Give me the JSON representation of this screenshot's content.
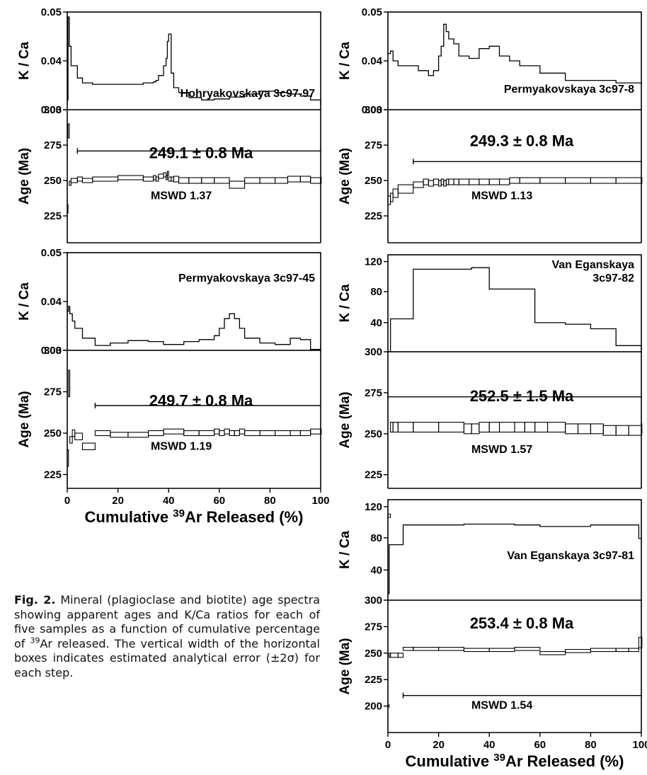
{
  "figure": {
    "caption_label": "Fig. 2.",
    "caption_part1": "Mineral (plagioclase and biotite) age spectra showing apparent ages and K/Ca ratios for each of five samples as a function of cumulative percentage of ",
    "caption_sup": "39",
    "caption_part2": "Ar released. The vertical width of the horizontal boxes indicates estimated analytical error (±2σ) for each step.",
    "xlabel_prefix": "Cumulative ",
    "xlabel_sup": "39",
    "xlabel_suffix": "Ar Released (%)",
    "x_ticks": [
      "0",
      "20",
      "40",
      "60",
      "80",
      "100"
    ]
  },
  "chart_data": [
    {
      "type": "line",
      "sample": "Hohryakovskaya 3c97-97",
      "xlabel": "Cumulative 39Ar Released (%)",
      "kca": {
        "ylabel": "K / Ca",
        "ylim": [
          0.025,
          0.05
        ],
        "ticks": [
          "0.05",
          "0.04",
          "0.03"
        ],
        "x": [
          0,
          0.3,
          0.8,
          1.5,
          4,
          6,
          10,
          20,
          30,
          34,
          35,
          36,
          38,
          39,
          39.5,
          40,
          41,
          42,
          44,
          48,
          53,
          58,
          64,
          70,
          76,
          82,
          87,
          92,
          96,
          100
        ],
        "y": [
          0.032,
          0.049,
          0.043,
          0.039,
          0.0365,
          0.0355,
          0.0352,
          0.0352,
          0.0355,
          0.0357,
          0.036,
          0.037,
          0.039,
          0.0405,
          0.044,
          0.0455,
          0.0375,
          0.0345,
          0.0335,
          0.0325,
          0.032,
          0.0322,
          0.0326,
          0.0332,
          0.0338,
          0.0335,
          0.0332,
          0.0328,
          0.032,
          0.031
        ]
      },
      "age": {
        "ylabel": "Age (Ma)",
        "ylim": [
          200,
          300
        ],
        "ticks": [
          "300",
          "275",
          "250",
          "225"
        ],
        "plateau_label": "249.1 ± 0.8 Ma",
        "plateau_value": 249.1,
        "plateau_x": [
          4,
          100
        ],
        "mswd": "MSWD 1.37",
        "x": [
          0,
          0.3,
          0.8,
          1.5,
          4,
          6,
          10,
          20,
          30,
          34,
          35,
          36,
          38,
          39,
          39.5,
          40,
          41,
          42,
          44,
          48,
          53,
          58,
          64,
          70,
          76,
          82,
          87,
          92,
          96,
          100
        ],
        "y": [
          230,
          285,
          248,
          250,
          251,
          250,
          251,
          252,
          251,
          252,
          251,
          253,
          254,
          252,
          255,
          251,
          251,
          251,
          250,
          250,
          250,
          250,
          247,
          250,
          250,
          250,
          251,
          251,
          250,
          250
        ],
        "err": [
          3,
          5,
          1.5,
          1.5,
          1.5,
          1.5,
          1.5,
          1.5,
          1.5,
          1.5,
          1.5,
          1.5,
          1.5,
          1.5,
          1.5,
          1.5,
          1.5,
          2,
          2,
          2,
          2,
          2,
          2.5,
          2,
          2,
          2,
          2,
          2,
          2,
          2
        ]
      }
    },
    {
      "type": "line",
      "sample": "Permyakovskaya 3c97-8",
      "xlabel": "",
      "kca": {
        "ylabel": "K / Ca",
        "ylim": [
          0.025,
          0.05
        ],
        "ticks": [
          "0.05",
          "0.04",
          "0.03"
        ],
        "x": [
          0,
          1,
          2,
          4,
          8,
          12,
          16,
          18,
          20,
          21,
          22,
          23,
          24,
          26,
          28,
          32,
          36,
          40,
          44,
          48,
          52,
          60,
          70,
          80,
          90,
          100
        ],
        "y": [
          0.0415,
          0.042,
          0.04,
          0.039,
          0.039,
          0.038,
          0.037,
          0.038,
          0.041,
          0.043,
          0.0475,
          0.046,
          0.0445,
          0.0435,
          0.041,
          0.0405,
          0.0425,
          0.043,
          0.041,
          0.04,
          0.039,
          0.0375,
          0.036,
          0.036,
          0.0355,
          0.035
        ]
      },
      "age": {
        "ylabel": "Age (Ma)",
        "ylim": [
          200,
          300
        ],
        "ticks": [
          "300",
          "275",
          "250",
          "225"
        ],
        "plateau_label": "249.3 ± 0.8 Ma",
        "plateau_value": 249.3,
        "plateau_x": [
          10,
          100
        ],
        "mswd": "MSWD 1.13",
        "x": [
          0,
          1,
          2,
          4,
          10,
          14,
          16,
          18,
          20,
          21,
          22,
          23,
          24,
          26,
          28,
          32,
          36,
          40,
          44,
          48,
          52,
          60,
          70,
          80,
          90,
          100
        ],
        "y": [
          236,
          238,
          241,
          244,
          247,
          249,
          248,
          249,
          248,
          249,
          248,
          249,
          249,
          249,
          249,
          249,
          249,
          249,
          249,
          250,
          250,
          250,
          250,
          250,
          250,
          250
        ],
        "err": [
          3,
          3,
          3,
          3,
          2,
          2,
          2,
          2,
          2,
          2,
          2,
          2,
          2,
          2,
          2,
          2,
          2,
          2,
          2,
          2,
          2,
          2,
          2,
          2,
          2,
          2
        ]
      }
    },
    {
      "type": "line",
      "sample": "Permyakovskaya 3c97-45",
      "xlabel": "Cumulative 39Ar Released (%)",
      "kca": {
        "ylabel": "K / Ca",
        "ylim": [
          0.025,
          0.05
        ],
        "ticks": [
          "0.05",
          "0.04",
          "0.03"
        ],
        "x": [
          0,
          0.5,
          1,
          2,
          3,
          6,
          11,
          17,
          24,
          32,
          38,
          46,
          52,
          58,
          60,
          62,
          64,
          66,
          68,
          70,
          76,
          82,
          88,
          92,
          96,
          100
        ],
        "y": [
          0.038,
          0.039,
          0.0375,
          0.036,
          0.0345,
          0.0325,
          0.031,
          0.0315,
          0.032,
          0.0318,
          0.0312,
          0.0318,
          0.0322,
          0.033,
          0.0345,
          0.0365,
          0.0375,
          0.0365,
          0.0345,
          0.0325,
          0.0315,
          0.0312,
          0.0325,
          0.0322,
          0.0302,
          0.0302
        ]
      },
      "age": {
        "ylabel": "Age (Ma)",
        "ylim": [
          200,
          300
        ],
        "ticks": [
          "300",
          "275",
          "250",
          "225"
        ],
        "plateau_label": "249.7 ± 0.8 Ma",
        "plateau_value": 249.7,
        "plateau_x": [
          11,
          100
        ],
        "mswd": "MSWD 1.19",
        "x": [
          0,
          0.5,
          1,
          2,
          3,
          6,
          11,
          17,
          24,
          32,
          38,
          46,
          52,
          58,
          60,
          62,
          64,
          66,
          68,
          70,
          76,
          82,
          88,
          92,
          96,
          100
        ],
        "y": [
          235,
          280,
          246,
          250,
          248,
          242,
          250,
          249,
          249,
          250,
          251,
          250,
          250,
          251,
          250,
          251,
          250,
          250,
          251,
          250,
          250,
          250,
          250,
          250,
          251,
          251
        ],
        "err": [
          5,
          8,
          2,
          2,
          2,
          2,
          1.5,
          1.5,
          1.5,
          1.5,
          1.5,
          1.5,
          1.5,
          1.5,
          1.5,
          1.5,
          1.5,
          1.5,
          1.5,
          1.5,
          1.5,
          1.5,
          1.5,
          1.5,
          1.5,
          1.5
        ]
      }
    },
    {
      "type": "line",
      "sample": "Van Eganskaya 3c97-82",
      "xlabel": "",
      "kca": {
        "ylabel": "K / Ca",
        "ylim": [
          0,
          130
        ],
        "ticks": [
          "120",
          "80",
          "40"
        ],
        "x": [
          0,
          1,
          2,
          4,
          10,
          20,
          30,
          33,
          36,
          40,
          44,
          50,
          54,
          58,
          63,
          70,
          75,
          80,
          85,
          90,
          95,
          100
        ],
        "y": [
          2,
          45,
          45,
          45,
          110,
          110,
          110,
          112,
          112,
          84,
          84,
          84,
          84,
          40,
          40,
          38,
          38,
          32,
          32,
          10,
          10,
          5
        ]
      },
      "age": {
        "ylabel": "Age (Ma)",
        "ylim": [
          200,
          300
        ],
        "ticks": [
          "300",
          "275",
          "250",
          "225"
        ],
        "plateau_label": "252.5 ± 1.5 Ma",
        "plateau_value": 252.5,
        "plateau_x": [
          0,
          100
        ],
        "mswd": "MSWD 1.57",
        "x": [
          0,
          1,
          2,
          4,
          10,
          20,
          30,
          33,
          36,
          40,
          44,
          50,
          54,
          58,
          63,
          70,
          75,
          80,
          85,
          90,
          95,
          100
        ],
        "y": [
          200,
          254,
          254,
          254,
          254,
          254,
          253,
          253,
          254,
          254,
          254,
          254,
          254,
          254,
          254,
          253,
          253,
          253,
          252,
          252,
          252,
          253
        ],
        "err": [
          1,
          3,
          3,
          3,
          3,
          3,
          3,
          3,
          3,
          3,
          3,
          3,
          3,
          3,
          3,
          3,
          3,
          3,
          3,
          3,
          3,
          3
        ]
      }
    },
    {
      "type": "line",
      "sample": "Van Eganskaya 3c97-81",
      "xlabel": "Cumulative 39Ar Released (%)",
      "kca": {
        "ylabel": "K / Ca",
        "ylim": [
          0,
          130
        ],
        "ticks": [
          "120",
          "80",
          "40"
        ],
        "x": [
          0,
          0.5,
          1,
          4,
          6,
          10,
          20,
          30,
          40,
          50,
          60,
          70,
          80,
          90,
          95,
          99,
          100
        ],
        "y": [
          10,
          72,
          72,
          72,
          97,
          97,
          97,
          98,
          98,
          97,
          95,
          95,
          97,
          97,
          97,
          80,
          80
        ],
        "note": "first step near zero"
      },
      "age": {
        "ylabel": "Age (Ma)",
        "ylim": [
          200,
          300
        ],
        "ticks": [
          "300",
          "275",
          "250",
          "225",
          "200"
        ],
        "plateau_label": "253.4 ± 0.8 Ma",
        "plateau_value": 253.4,
        "plateau_x": [
          6,
          100
        ],
        "mswd": "MSWD 1.54",
        "x": [
          0,
          0.5,
          1,
          4,
          6,
          10,
          20,
          30,
          40,
          50,
          60,
          70,
          80,
          90,
          95,
          99,
          100
        ],
        "y": [
          200,
          248,
          248,
          248,
          254,
          254,
          254,
          253,
          253,
          254,
          250,
          252,
          253,
          253,
          253,
          260,
          260
        ],
        "err": [
          1,
          2,
          2,
          2,
          1.5,
          1.5,
          1.5,
          1.5,
          1.5,
          1.5,
          1.5,
          1.5,
          1.5,
          1.5,
          1.5,
          5,
          5
        ]
      }
    }
  ]
}
